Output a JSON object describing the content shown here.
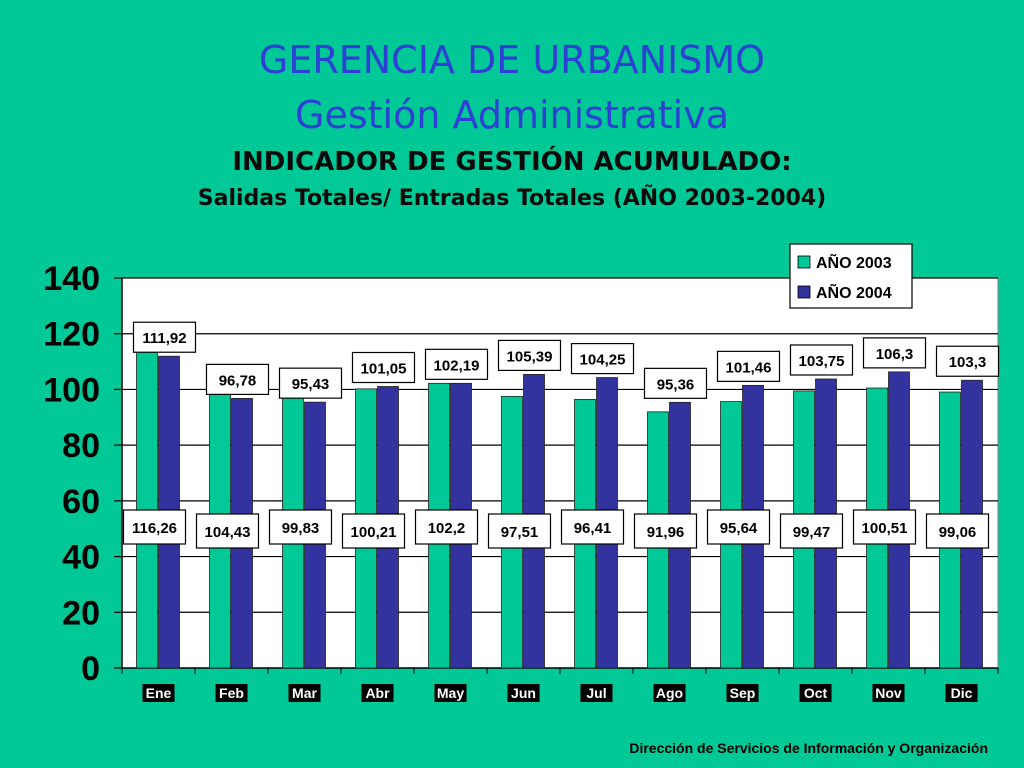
{
  "slide": {
    "title1": "GERENCIA DE URBANISMO",
    "title2": "Gestión Administrativa",
    "title3": "INDICADOR DE GESTIÓN ACUMULADO:",
    "title4": "Salidas Totales/ Entradas Totales (AÑO 2003-2004)",
    "footer": "Dirección de Servicios de  Información y Organización"
  },
  "colors": {
    "background": "#00C896",
    "title_blue": "#2E3FD4",
    "series_2003": "#00C896",
    "series_2004": "#3333A0"
  },
  "chart_data": {
    "type": "bar",
    "categories": [
      "Ene",
      "Feb",
      "Mar",
      "Abr",
      "May",
      "Jun",
      "Jul",
      "Ago",
      "Sep",
      "Oct",
      "Nov",
      "Dic"
    ],
    "series": [
      {
        "name": "AÑO 2003",
        "values": [
          116.26,
          104.43,
          99.83,
          100.21,
          102.2,
          97.51,
          96.41,
          91.96,
          95.64,
          99.47,
          100.51,
          99.06
        ],
        "labels": [
          "116,26",
          "104,43",
          "99,83",
          "100,21",
          "102,2",
          "97,51",
          "96,41",
          "91,96",
          "95,64",
          "99,47",
          "100,51",
          "99,06"
        ]
      },
      {
        "name": "AÑO 2004",
        "values": [
          111.92,
          96.78,
          95.43,
          101.05,
          102.19,
          105.39,
          104.25,
          95.36,
          101.46,
          103.75,
          106.3,
          103.3
        ],
        "labels": [
          "111,92",
          "96,78",
          "95,43",
          "101,05",
          "102,19",
          "105,39",
          "104,25",
          "95,36",
          "101,46",
          "103,75",
          "106,3",
          "103,3"
        ]
      }
    ],
    "ylim": [
      0,
      140
    ],
    "yticks": [
      0,
      20,
      40,
      60,
      80,
      100,
      120,
      140
    ],
    "grid": true,
    "legend": "top-right"
  }
}
